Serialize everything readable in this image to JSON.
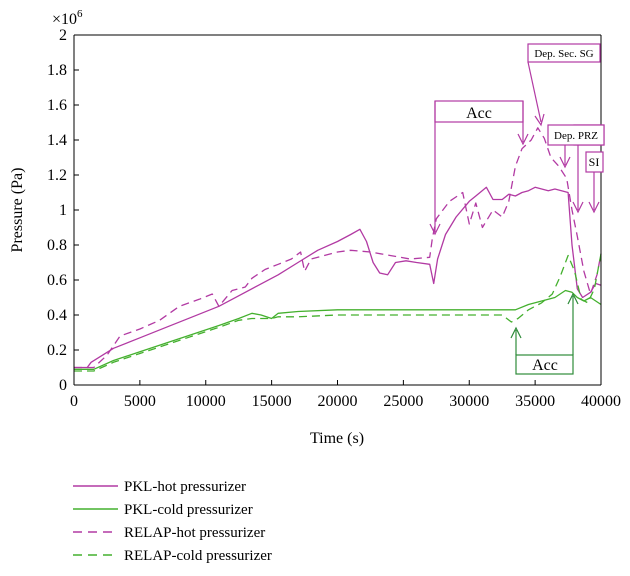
{
  "chart_data": {
    "type": "line",
    "xlabel": "Time (s)",
    "ylabel": "Pressure (Pa)",
    "y_multiplier_label": "×10",
    "y_multiplier_exp": "6",
    "xlim": [
      0,
      40000
    ],
    "ylim": [
      0,
      2
    ],
    "x_ticks": [
      0,
      5000,
      10000,
      15000,
      20000,
      25000,
      30000,
      35000,
      40000
    ],
    "x_tick_labels": [
      "0",
      "5000",
      "10000",
      "15000",
      "20000",
      "25000",
      "30000",
      "35000",
      "40000"
    ],
    "y_ticks": [
      0,
      0.2,
      0.4,
      0.6,
      0.8,
      1,
      1.2,
      1.4,
      1.6,
      1.8,
      2
    ],
    "y_tick_labels": [
      "0",
      "0.2",
      "0.4",
      "0.6",
      "0.8",
      "1",
      "1.2",
      "1.4",
      "1.6",
      "1.8",
      "2"
    ],
    "grid": false,
    "legend_position": "below",
    "series": [
      {
        "name": "PKL-hot pressurizer",
        "color": "#b23aa3",
        "dash": "solid",
        "points": [
          [
            0,
            0.1
          ],
          [
            1000,
            0.1
          ],
          [
            1300,
            0.13
          ],
          [
            3000,
            0.21
          ],
          [
            5000,
            0.27
          ],
          [
            7000,
            0.33
          ],
          [
            9000,
            0.39
          ],
          [
            11000,
            0.45
          ],
          [
            12500,
            0.51
          ],
          [
            14000,
            0.57
          ],
          [
            15500,
            0.63
          ],
          [
            17000,
            0.7
          ],
          [
            18500,
            0.77
          ],
          [
            20000,
            0.82
          ],
          [
            21000,
            0.86
          ],
          [
            21700,
            0.89
          ],
          [
            22200,
            0.82
          ],
          [
            22700,
            0.7
          ],
          [
            23200,
            0.64
          ],
          [
            23800,
            0.63
          ],
          [
            24400,
            0.7
          ],
          [
            25200,
            0.71
          ],
          [
            26000,
            0.7
          ],
          [
            27000,
            0.69
          ],
          [
            27300,
            0.58
          ],
          [
            27600,
            0.72
          ],
          [
            28200,
            0.86
          ],
          [
            29000,
            0.96
          ],
          [
            30000,
            1.05
          ],
          [
            30500,
            1.08
          ],
          [
            31300,
            1.13
          ],
          [
            31800,
            1.06
          ],
          [
            32500,
            1.06
          ],
          [
            33000,
            1.09
          ],
          [
            33500,
            1.08
          ],
          [
            34000,
            1.1
          ],
          [
            34500,
            1.11
          ],
          [
            35000,
            1.13
          ],
          [
            35500,
            1.12
          ],
          [
            36000,
            1.11
          ],
          [
            36500,
            1.12
          ],
          [
            37000,
            1.11
          ],
          [
            37500,
            1.1
          ],
          [
            37800,
            0.8
          ],
          [
            38200,
            0.55
          ],
          [
            38600,
            0.5
          ],
          [
            39200,
            0.53
          ],
          [
            39600,
            0.58
          ],
          [
            40000,
            0.57
          ]
        ]
      },
      {
        "name": "PKL-cold pressurizer",
        "color": "#44b02e",
        "dash": "solid",
        "points": [
          [
            0,
            0.09
          ],
          [
            1500,
            0.09
          ],
          [
            3000,
            0.14
          ],
          [
            5000,
            0.19
          ],
          [
            7000,
            0.24
          ],
          [
            9000,
            0.29
          ],
          [
            11000,
            0.34
          ],
          [
            12500,
            0.38
          ],
          [
            13500,
            0.41
          ],
          [
            14200,
            0.4
          ],
          [
            15000,
            0.38
          ],
          [
            15500,
            0.41
          ],
          [
            17000,
            0.42
          ],
          [
            20000,
            0.43
          ],
          [
            22000,
            0.43
          ],
          [
            25000,
            0.43
          ],
          [
            28000,
            0.43
          ],
          [
            31000,
            0.43
          ],
          [
            33500,
            0.43
          ],
          [
            34500,
            0.46
          ],
          [
            35500,
            0.48
          ],
          [
            36500,
            0.5
          ],
          [
            37300,
            0.54
          ],
          [
            37800,
            0.53
          ],
          [
            38200,
            0.5
          ],
          [
            38700,
            0.48
          ],
          [
            39200,
            0.5
          ],
          [
            40000,
            0.46
          ]
        ]
      },
      {
        "name": "RELAP-hot pressurizer",
        "color": "#b23aa3",
        "dash": "dashed",
        "points": [
          [
            0,
            0.1
          ],
          [
            1500,
            0.1
          ],
          [
            2500,
            0.17
          ],
          [
            3500,
            0.28
          ],
          [
            5000,
            0.32
          ],
          [
            6500,
            0.37
          ],
          [
            8000,
            0.45
          ],
          [
            9500,
            0.49
          ],
          [
            10500,
            0.52
          ],
          [
            11000,
            0.45
          ],
          [
            12000,
            0.54
          ],
          [
            13000,
            0.56
          ],
          [
            13500,
            0.61
          ],
          [
            14500,
            0.66
          ],
          [
            15500,
            0.69
          ],
          [
            16500,
            0.72
          ],
          [
            17200,
            0.76
          ],
          [
            17500,
            0.65
          ],
          [
            18000,
            0.72
          ],
          [
            19000,
            0.74
          ],
          [
            20000,
            0.76
          ],
          [
            21000,
            0.77
          ],
          [
            22500,
            0.76
          ],
          [
            24000,
            0.74
          ],
          [
            25500,
            0.72
          ],
          [
            27000,
            0.73
          ],
          [
            27200,
            0.84
          ],
          [
            27500,
            0.95
          ],
          [
            28500,
            1.05
          ],
          [
            29500,
            1.1
          ],
          [
            30000,
            0.92
          ],
          [
            30500,
            1.04
          ],
          [
            31000,
            0.9
          ],
          [
            31800,
            1.0
          ],
          [
            32500,
            0.96
          ],
          [
            33000,
            1.05
          ],
          [
            33500,
            1.25
          ],
          [
            34000,
            1.35
          ],
          [
            34700,
            1.4
          ],
          [
            35200,
            1.47
          ],
          [
            35700,
            1.41
          ],
          [
            36200,
            1.3
          ],
          [
            36800,
            1.25
          ],
          [
            37400,
            1.18
          ],
          [
            37800,
            1.0
          ],
          [
            38200,
            0.85
          ],
          [
            38700,
            0.65
          ],
          [
            39200,
            0.52
          ],
          [
            39700,
            0.63
          ],
          [
            40000,
            0.75
          ]
        ]
      },
      {
        "name": "RELAP-cold pressurizer",
        "color": "#44b02e",
        "dash": "dashed",
        "points": [
          [
            0,
            0.08
          ],
          [
            1500,
            0.08
          ],
          [
            3000,
            0.13
          ],
          [
            5000,
            0.18
          ],
          [
            7000,
            0.23
          ],
          [
            9000,
            0.28
          ],
          [
            11000,
            0.33
          ],
          [
            12500,
            0.37
          ],
          [
            13500,
            0.38
          ],
          [
            15000,
            0.38
          ],
          [
            15500,
            0.39
          ],
          [
            17000,
            0.39
          ],
          [
            20000,
            0.4
          ],
          [
            23000,
            0.4
          ],
          [
            26000,
            0.4
          ],
          [
            29000,
            0.4
          ],
          [
            31000,
            0.4
          ],
          [
            32500,
            0.4
          ],
          [
            33200,
            0.36
          ],
          [
            33700,
            0.38
          ],
          [
            34500,
            0.43
          ],
          [
            35500,
            0.47
          ],
          [
            36300,
            0.52
          ],
          [
            36900,
            0.62
          ],
          [
            37500,
            0.74
          ],
          [
            38000,
            0.65
          ],
          [
            38500,
            0.49
          ],
          [
            39000,
            0.47
          ],
          [
            39500,
            0.55
          ],
          [
            40000,
            0.75
          ]
        ]
      }
    ],
    "annotations": [
      {
        "id": "acc-top",
        "text": "Acc",
        "color": "#b23aa3"
      },
      {
        "id": "dep-sec-sg",
        "text": "Dep. Sec. SG",
        "color": "#b23aa3"
      },
      {
        "id": "dep-prz",
        "text": "Dep. PRZ",
        "color": "#b23aa3"
      },
      {
        "id": "si",
        "text": "SI",
        "color": "#b23aa3"
      },
      {
        "id": "acc-bottom",
        "text": "Acc",
        "color": "#2e8b3a"
      }
    ]
  }
}
